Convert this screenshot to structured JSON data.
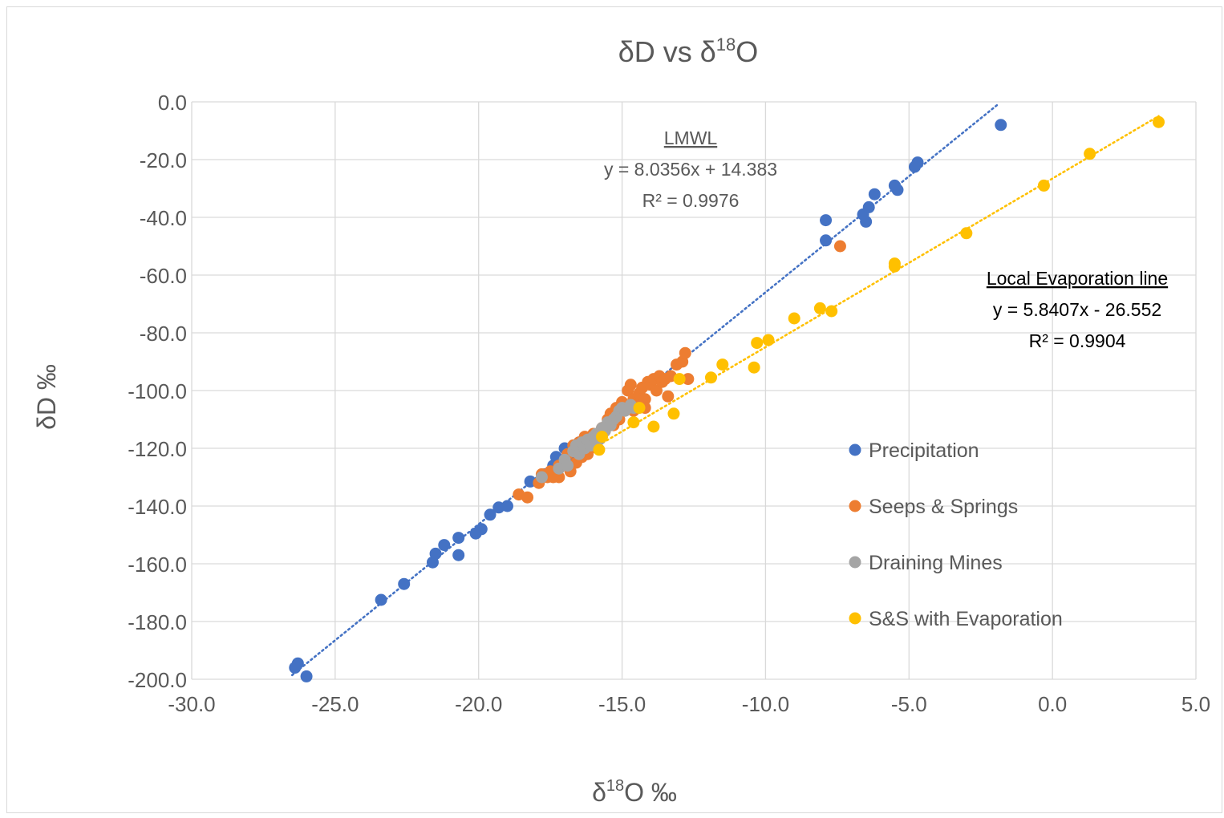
{
  "chart_data": {
    "type": "scatter",
    "title": "δD  vs δ18O",
    "title_parts": {
      "main": "δD  vs δ",
      "sup": "18",
      "end": "O"
    },
    "xlabel": "δ18O ‰",
    "xlabel_parts": {
      "main": "δ",
      "sup": "18",
      "end": "O ‰"
    },
    "ylabel": "δD ‰",
    "xlim": [
      -30,
      5
    ],
    "ylim": [
      -200,
      0
    ],
    "x_ticks": [
      "-30.0",
      "-25.0",
      "-20.0",
      "-15.0",
      "-10.0",
      "-5.0",
      "0.0",
      "5.0"
    ],
    "y_ticks": [
      "0.0",
      "-20.0",
      "-40.0",
      "-60.0",
      "-80.0",
      "-100.0",
      "-120.0",
      "-140.0",
      "-160.0",
      "-180.0",
      "-200.0"
    ],
    "grid": true,
    "legend_position": "right",
    "series": [
      {
        "name": "Precipitation",
        "color": "#4472C4",
        "points": [
          [
            -26.4,
            -196
          ],
          [
            -26.3,
            -194.5
          ],
          [
            -26.0,
            -199
          ],
          [
            -23.4,
            -172.5
          ],
          [
            -22.6,
            -167
          ],
          [
            -21.6,
            -159.5
          ],
          [
            -21.5,
            -156.5
          ],
          [
            -21.2,
            -153.5
          ],
          [
            -20.7,
            -151
          ],
          [
            -20.7,
            -157
          ],
          [
            -20.1,
            -149.5
          ],
          [
            -19.9,
            -148
          ],
          [
            -19.6,
            -143
          ],
          [
            -19.3,
            -140.5
          ],
          [
            -19.0,
            -140
          ],
          [
            -18.2,
            -131.5
          ],
          [
            -17.7,
            -129
          ],
          [
            -17.4,
            -126
          ],
          [
            -17.3,
            -123
          ],
          [
            -17.0,
            -120
          ],
          [
            -16.8,
            -123
          ],
          [
            -16.5,
            -118
          ],
          [
            -7.9,
            -48
          ],
          [
            -7.9,
            -41
          ],
          [
            -6.6,
            -39
          ],
          [
            -6.5,
            -41.5
          ],
          [
            -6.4,
            -36.5
          ],
          [
            -6.2,
            -32
          ],
          [
            -5.5,
            -29
          ],
          [
            -5.4,
            -30.5
          ],
          [
            -4.8,
            -22.5
          ],
          [
            -4.7,
            -21
          ],
          [
            -1.8,
            -8
          ]
        ]
      },
      {
        "name": "Seeps & Springs",
        "color": "#ED7D31",
        "points": [
          [
            -18.6,
            -136
          ],
          [
            -18.3,
            -137
          ],
          [
            -17.9,
            -132
          ],
          [
            -17.8,
            -129
          ],
          [
            -17.6,
            -130
          ],
          [
            -17.5,
            -128
          ],
          [
            -17.4,
            -130
          ],
          [
            -17.2,
            -130
          ],
          [
            -17.2,
            -126
          ],
          [
            -16.9,
            -122
          ],
          [
            -16.8,
            -128
          ],
          [
            -16.7,
            -119
          ],
          [
            -16.6,
            -125
          ],
          [
            -16.5,
            -118
          ],
          [
            -16.4,
            -123
          ],
          [
            -16.3,
            -116
          ],
          [
            -16.2,
            -122
          ],
          [
            -16.1,
            -120
          ],
          [
            -16.0,
            -115
          ],
          [
            -15.9,
            -118
          ],
          [
            -15.8,
            -116
          ],
          [
            -15.7,
            -113
          ],
          [
            -15.6,
            -114
          ],
          [
            -15.5,
            -110
          ],
          [
            -15.4,
            -108
          ],
          [
            -15.3,
            -112
          ],
          [
            -15.2,
            -106
          ],
          [
            -15.1,
            -110
          ],
          [
            -15.0,
            -104
          ],
          [
            -14.9,
            -106
          ],
          [
            -14.8,
            -100
          ],
          [
            -14.7,
            -98
          ],
          [
            -14.6,
            -103
          ],
          [
            -14.5,
            -104
          ],
          [
            -14.4,
            -101
          ],
          [
            -14.3,
            -99
          ],
          [
            -14.2,
            -103
          ],
          [
            -14.1,
            -97
          ],
          [
            -14.0,
            -98
          ],
          [
            -13.9,
            -96
          ],
          [
            -13.8,
            -100
          ],
          [
            -13.7,
            -95
          ],
          [
            -13.6,
            -97
          ],
          [
            -13.5,
            -96
          ],
          [
            -13.4,
            -102
          ],
          [
            -13.3,
            -95
          ],
          [
            -13.1,
            -91
          ],
          [
            -12.9,
            -90
          ],
          [
            -12.8,
            -87
          ],
          [
            -12.7,
            -96
          ],
          [
            -14.2,
            -106
          ],
          [
            -14.6,
            -107
          ],
          [
            -15.5,
            -112
          ],
          [
            -16.3,
            -119
          ],
          [
            -7.4,
            -50
          ]
        ]
      },
      {
        "name": "Draining Mines",
        "color": "#A5A5A5",
        "points": [
          [
            -17.8,
            -130
          ],
          [
            -17.2,
            -127
          ],
          [
            -17.0,
            -124
          ],
          [
            -16.9,
            -126
          ],
          [
            -16.7,
            -121
          ],
          [
            -16.6,
            -119
          ],
          [
            -16.5,
            -122
          ],
          [
            -16.4,
            -118
          ],
          [
            -16.3,
            -120
          ],
          [
            -16.2,
            -117
          ],
          [
            -16.1,
            -119
          ],
          [
            -16.0,
            -116
          ],
          [
            -15.9,
            -115
          ],
          [
            -15.8,
            -117
          ],
          [
            -15.7,
            -113
          ],
          [
            -15.6,
            -114
          ],
          [
            -15.5,
            -111
          ],
          [
            -15.4,
            -112
          ],
          [
            -15.3,
            -110
          ],
          [
            -15.2,
            -109
          ],
          [
            -15.1,
            -107
          ],
          [
            -15.0,
            -106
          ],
          [
            -14.9,
            -107
          ],
          [
            -14.7,
            -105
          ],
          [
            -14.6,
            -106
          ]
        ]
      },
      {
        "name": "S&S with Evaporation",
        "color": "#FFC000",
        "points": [
          [
            -15.8,
            -120.5
          ],
          [
            -15.7,
            -116
          ],
          [
            -14.6,
            -111
          ],
          [
            -14.4,
            -106
          ],
          [
            -13.9,
            -112.5
          ],
          [
            -13.2,
            -108
          ],
          [
            -13.0,
            -96
          ],
          [
            -11.9,
            -95.5
          ],
          [
            -11.5,
            -91
          ],
          [
            -10.4,
            -92
          ],
          [
            -10.3,
            -83.5
          ],
          [
            -9.9,
            -82.5
          ],
          [
            -9.0,
            -75
          ],
          [
            -8.1,
            -71.5
          ],
          [
            -7.7,
            -72.5
          ],
          [
            -5.5,
            -56
          ],
          [
            -5.5,
            -57
          ],
          [
            -3.0,
            -45.5
          ],
          [
            -0.3,
            -29
          ],
          [
            1.3,
            -18
          ],
          [
            3.7,
            -7
          ]
        ]
      }
    ],
    "trendlines": [
      {
        "series": "Precipitation",
        "label_title": "LMWL",
        "equation": "y = 8.0356x + 14.383",
        "r2": "R² = 0.9976",
        "slope": 8.0356,
        "intercept": 14.383,
        "x_range": [
          -26.5,
          -1.9
        ],
        "color": "#4472C4"
      },
      {
        "series": "S&S with Evaporation",
        "label_title": "Local Evaporation line",
        "equation": "y = 5.8407x - 26.552",
        "r2": "R² = 0.9904",
        "slope": 5.8407,
        "intercept": -26.552,
        "x_range": [
          -16.4,
          3.7
        ],
        "color": "#FFC000"
      }
    ]
  }
}
